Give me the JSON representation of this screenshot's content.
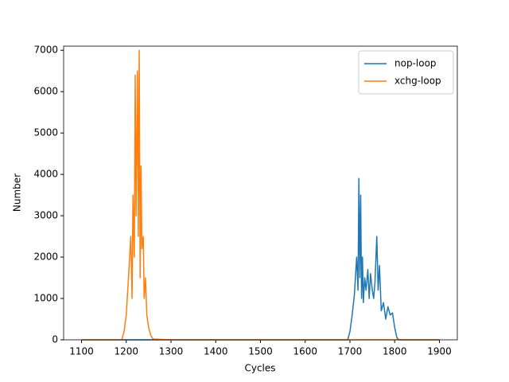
{
  "chart_data": {
    "type": "line",
    "xlabel": "Cycles",
    "ylabel": "Number",
    "xlim": [
      1060,
      1940
    ],
    "ylim": [
      0,
      7100
    ],
    "xticks": [
      1100,
      1200,
      1300,
      1400,
      1500,
      1600,
      1700,
      1800,
      1900
    ],
    "yticks": [
      0,
      1000,
      2000,
      3000,
      4000,
      5000,
      6000,
      7000
    ],
    "legend": "upper right",
    "series": [
      {
        "name": "nop-loop",
        "color": "#1f77b4",
        "x": [
          1100,
          1695,
          1700,
          1705,
          1710,
          1715,
          1718,
          1720,
          1722,
          1724,
          1726,
          1728,
          1730,
          1733,
          1736,
          1740,
          1743,
          1746,
          1750,
          1753,
          1756,
          1760,
          1763,
          1766,
          1770,
          1775,
          1780,
          1785,
          1790,
          1795,
          1800,
          1805,
          1810,
          1900
        ],
        "values": [
          0,
          0,
          200,
          600,
          1100,
          2000,
          1200,
          3900,
          1500,
          3500,
          1000,
          2000,
          900,
          1500,
          1200,
          1700,
          1000,
          1600,
          1200,
          1000,
          1400,
          2500,
          1200,
          1800,
          700,
          900,
          500,
          800,
          600,
          650,
          300,
          50,
          0,
          0
        ]
      },
      {
        "name": "xchg-loop",
        "color": "#ff7f0e",
        "x": [
          1100,
          1190,
          1195,
          1200,
          1205,
          1210,
          1213,
          1215,
          1218,
          1220,
          1222,
          1225,
          1227,
          1229,
          1231,
          1233,
          1235,
          1238,
          1240,
          1243,
          1246,
          1250,
          1255,
          1260,
          1300,
          1900
        ],
        "values": [
          0,
          0,
          200,
          600,
          1500,
          2500,
          1000,
          3500,
          2000,
          6400,
          3000,
          6500,
          2500,
          7000,
          1500,
          4200,
          2200,
          2500,
          1000,
          1500,
          600,
          300,
          100,
          20,
          0,
          0
        ]
      }
    ]
  }
}
